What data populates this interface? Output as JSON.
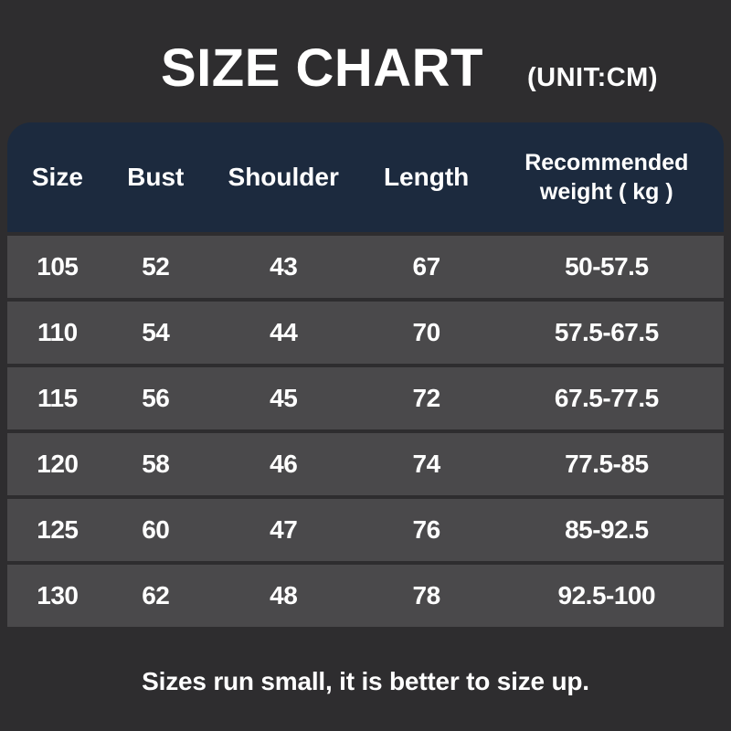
{
  "colors": {
    "background": "#2e2d2f",
    "header_bg": "#1c2a3e",
    "row_bg": "#4a494b",
    "text": "#ffffff"
  },
  "header": {
    "title": "SIZE CHART",
    "unit": "(UNIT:CM)"
  },
  "table": {
    "columns": [
      "Size",
      "Bust",
      "Shoulder",
      "Length",
      "Recommended weight ( kg )"
    ],
    "rows": [
      [
        "105",
        "52",
        "43",
        "67",
        "50-57.5"
      ],
      [
        "110",
        "54",
        "44",
        "70",
        "57.5-67.5"
      ],
      [
        "115",
        "56",
        "45",
        "72",
        "67.5-77.5"
      ],
      [
        "120",
        "58",
        "46",
        "74",
        "77.5-85"
      ],
      [
        "125",
        "60",
        "47",
        "76",
        "85-92.5"
      ],
      [
        "130",
        "62",
        "48",
        "78",
        "92.5-100"
      ]
    ]
  },
  "footer": {
    "note": "Sizes run small, it is better to size up."
  },
  "chart_data": {
    "type": "table",
    "title": "SIZE CHART",
    "unit": "CM",
    "columns": [
      "Size",
      "Bust",
      "Shoulder",
      "Length",
      "Recommended weight (kg)"
    ],
    "rows": [
      [
        105,
        52,
        43,
        67,
        "50-57.5"
      ],
      [
        110,
        54,
        44,
        70,
        "57.5-67.5"
      ],
      [
        115,
        56,
        45,
        72,
        "67.5-77.5"
      ],
      [
        120,
        58,
        46,
        74,
        "77.5-85"
      ],
      [
        125,
        60,
        47,
        76,
        "85-92.5"
      ],
      [
        130,
        62,
        48,
        78,
        "92.5-100"
      ]
    ],
    "note": "Sizes run small, it is better to size up."
  }
}
